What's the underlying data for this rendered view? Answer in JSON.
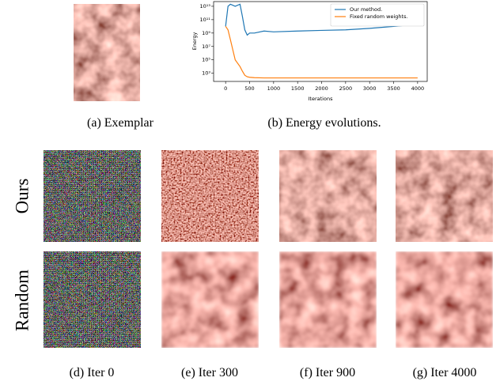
{
  "chart_data": {
    "type": "line",
    "x_label": "Iterations",
    "y_label": "Energy",
    "x": [
      0,
      50,
      100,
      200,
      300,
      350,
      400,
      450,
      500,
      600,
      800,
      1000,
      1500,
      2000,
      2500,
      3000,
      3500,
      4000
    ],
    "series": [
      {
        "name": "Our method.",
        "color": "#1f77b4",
        "values": [
          10000000000,
          10000000000000,
          20000000000000,
          10000000000000,
          20000000000000,
          300000000000,
          3000000000,
          500000000,
          1000000000,
          1000000000,
          2000000000,
          1500000000,
          2000000000,
          2500000000,
          3000000000,
          5000000000,
          10000000000,
          20000000000
        ]
      },
      {
        "name": "Fixed random weights.",
        "color": "#ff7f0e",
        "values": [
          10000000000,
          3000000000,
          100000000,
          100000,
          10000,
          2000,
          500,
          300,
          250,
          220,
          200,
          200,
          200,
          200,
          200,
          200,
          200,
          200
        ]
      }
    ],
    "xlim": [
      -250,
      4200
    ],
    "xticks": [
      0,
      500,
      1000,
      1500,
      2000,
      2500,
      3000,
      3500,
      4000
    ],
    "ylim": [
      60,
      50000000000000
    ],
    "log_y": true,
    "yticks": [
      {
        "value": 1000,
        "label": "10³"
      },
      {
        "value": 100000,
        "label": "10⁵"
      },
      {
        "value": 10000000,
        "label": "10⁷"
      },
      {
        "value": 1000000000,
        "label": "10⁹"
      },
      {
        "value": 100000000000,
        "label": "10¹¹"
      },
      {
        "value": 10000000000000,
        "label": "10¹³"
      }
    ],
    "legend": "upper right"
  },
  "figure": {
    "captions": {
      "a": "(a) Exemplar",
      "b": "(b) Energy evolutions.",
      "d": "(d) Iter 0",
      "e": "(e) Iter 300",
      "f": "(f) Iter 900",
      "g": "(g) Iter 4000"
    },
    "row_labels": [
      "Ours",
      "Random"
    ]
  }
}
